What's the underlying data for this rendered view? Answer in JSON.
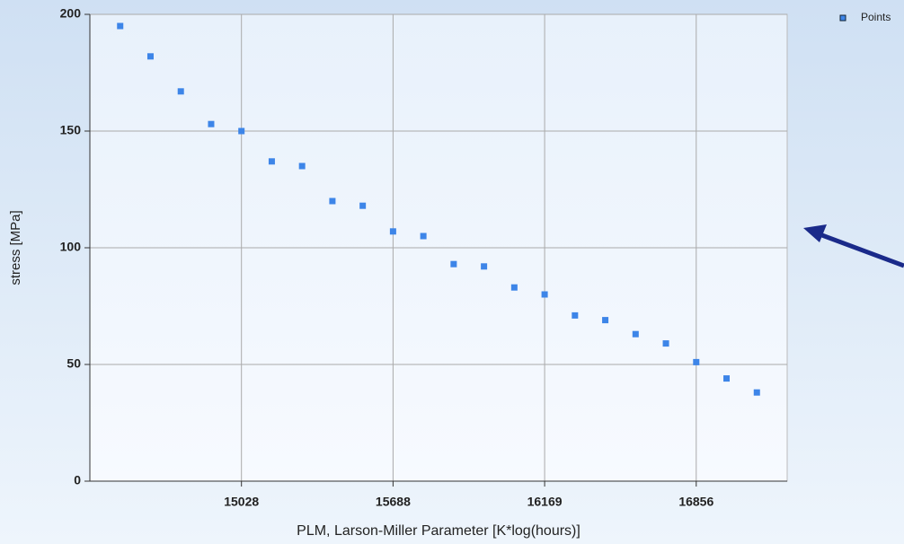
{
  "chart_data": {
    "type": "scatter",
    "x_label": "PLM, Larson-Miller Parameter [K*log(hours)]",
    "y_label": "stress [MPa]",
    "categories": [
      null,
      null,
      null,
      null,
      "15028",
      null,
      null,
      null,
      null,
      "15688",
      null,
      null,
      null,
      null,
      "16169",
      null,
      null,
      null,
      null,
      "16856",
      null,
      null
    ],
    "series": [
      {
        "name": "Points",
        "color": "#3d85e8",
        "values": [
          195,
          182,
          167,
          153,
          150,
          137,
          135,
          120,
          118,
          107,
          105,
          93,
          92,
          83,
          80,
          71,
          69,
          63,
          59,
          51,
          44,
          38
        ]
      }
    ],
    "ylim": [
      0,
      200
    ],
    "yticks": [
      0,
      50,
      100,
      150,
      200
    ],
    "grid": true,
    "legend": "top-right"
  }
}
